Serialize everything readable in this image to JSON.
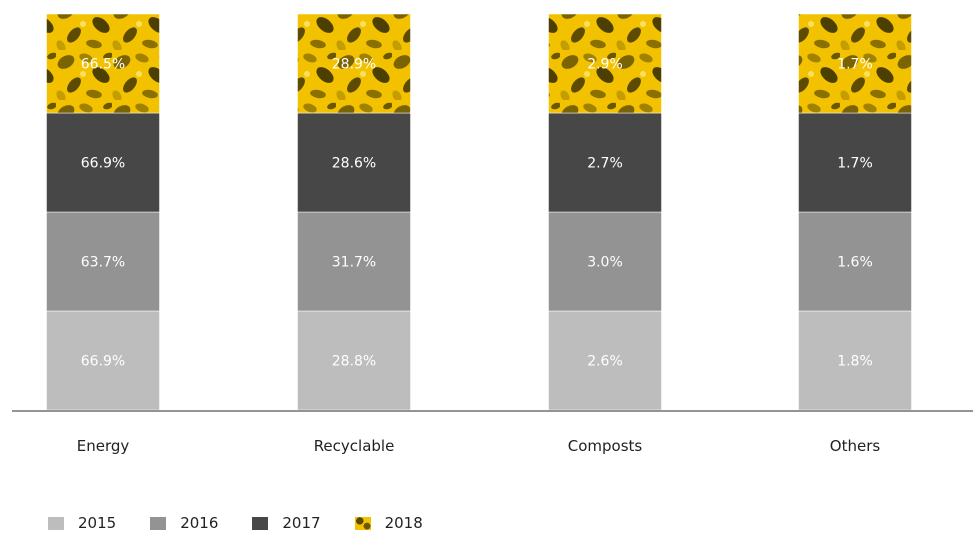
{
  "chart_data": {
    "type": "bar",
    "stacked": true,
    "categories": [
      "Energy",
      "Recyclable",
      "Composts",
      "Others"
    ],
    "series": [
      {
        "name": "2015",
        "values": [
          66.9,
          28.8,
          2.6,
          1.8
        ],
        "labels": [
          "66.9%",
          "28.8%",
          "2.6%",
          "1.8%"
        ],
        "color": "#bdbdbd"
      },
      {
        "name": "2016",
        "values": [
          63.7,
          31.7,
          3.0,
          1.6
        ],
        "labels": [
          "63.7%",
          "31.7%",
          "3.0%",
          "1.6%"
        ],
        "color": "#939393"
      },
      {
        "name": "2017",
        "values": [
          66.9,
          28.6,
          2.7,
          1.7
        ],
        "labels": [
          "66.9%",
          "28.6%",
          "2.7%",
          "1.7%"
        ],
        "color": "#474747"
      },
      {
        "name": "2018",
        "values": [
          66.5,
          28.9,
          2.9,
          1.7
        ],
        "labels": [
          "66.5%",
          "28.9%",
          "2.9%",
          "1.7%"
        ],
        "color": "#f2c200",
        "fill": "leaf-texture"
      }
    ],
    "segment_heights": "equal",
    "legend_position": "bottom-left",
    "grid": false,
    "title": "",
    "xlabel": "",
    "ylabel": ""
  }
}
